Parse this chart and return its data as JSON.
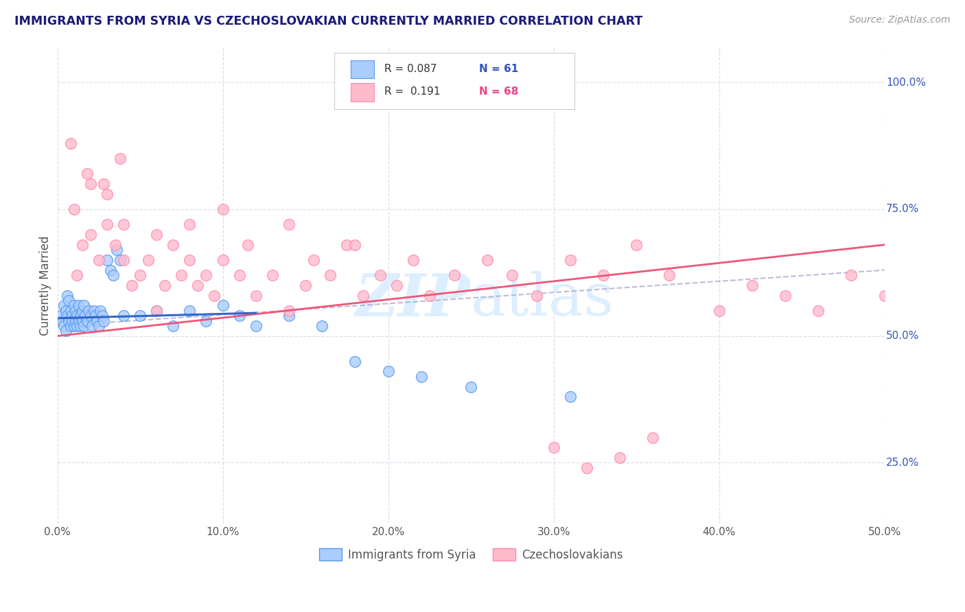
{
  "title": "IMMIGRANTS FROM SYRIA VS CZECHOSLOVAKIAN CURRENTLY MARRIED CORRELATION CHART",
  "title_color": "#1a1a7a",
  "source_text": "Source: ZipAtlas.com",
  "ylabel": "Currently Married",
  "xlim": [
    0.0,
    0.5
  ],
  "ylim": [
    0.13,
    1.07
  ],
  "xtick_vals": [
    0.0,
    0.1,
    0.2,
    0.3,
    0.4,
    0.5
  ],
  "xtick_labels": [
    "0.0%",
    "10.0%",
    "20.0%",
    "30.0%",
    "40.0%",
    "50.0%"
  ],
  "ytick_right_labels": [
    "25.0%",
    "50.0%",
    "75.0%",
    "100.0%"
  ],
  "ytick_right_vals": [
    0.25,
    0.5,
    0.75,
    1.0
  ],
  "blue_edge_color": "#5599ee",
  "pink_edge_color": "#ff88aa",
  "blue_fill_color": "#aaccff",
  "pink_fill_color": "#ffbbcc",
  "trend_blue_color": "#3366cc",
  "trend_pink_color": "#ee5577",
  "trend_gray_color": "#aaaacc",
  "watermark_color": "#ddeeff",
  "background_color": "#ffffff",
  "grid_color": "#ddddee",
  "legend_text_color": "#333333",
  "legend_n_color": "#3355bb",
  "right_label_color": "#3355bb"
}
